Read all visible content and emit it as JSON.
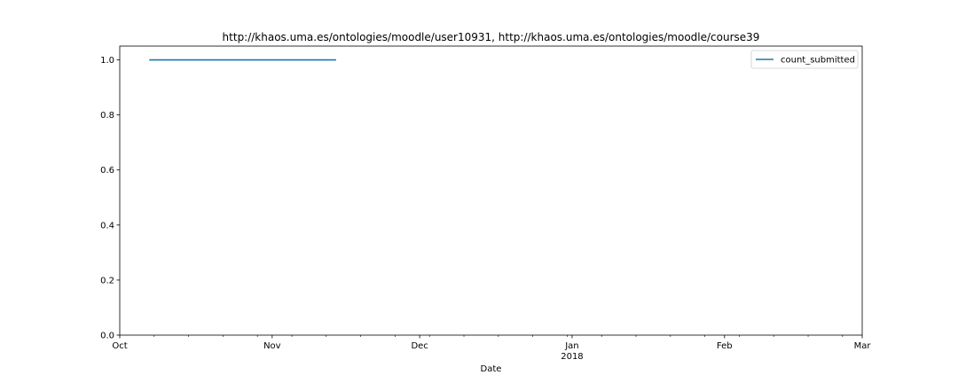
{
  "chart_data": {
    "type": "line",
    "title": "http://khaos.uma.es/ontologies/moodle/user10931, http://khaos.uma.es/ontologies/moodle/course39",
    "xlabel": "Date",
    "ylabel": "",
    "xlim": [
      "2017-10-01",
      "2018-03-01"
    ],
    "ylim": [
      0.0,
      1.05
    ],
    "x_major_ticks": [
      {
        "date": "2017-10-01",
        "label": "Oct",
        "sublabel": ""
      },
      {
        "date": "2017-11-01",
        "label": "Nov",
        "sublabel": ""
      },
      {
        "date": "2017-12-01",
        "label": "Dec",
        "sublabel": ""
      },
      {
        "date": "2018-01-01",
        "label": "Jan",
        "sublabel": "2018"
      },
      {
        "date": "2018-02-01",
        "label": "Feb",
        "sublabel": ""
      },
      {
        "date": "2018-03-01",
        "label": "Mar",
        "sublabel": ""
      }
    ],
    "x_minor_ticks": [
      "2017-10-08",
      "2017-10-15",
      "2017-10-22",
      "2017-10-29",
      "2017-11-05",
      "2017-11-12",
      "2017-11-19",
      "2017-11-26",
      "2017-12-03",
      "2017-12-10",
      "2017-12-17",
      "2017-12-24",
      "2017-12-31",
      "2018-01-07",
      "2018-01-14",
      "2018-01-21",
      "2018-01-28",
      "2018-02-04",
      "2018-02-11",
      "2018-02-18",
      "2018-02-25"
    ],
    "y_ticks": [
      "0.0",
      "0.2",
      "0.4",
      "0.6",
      "0.8",
      "1.0"
    ],
    "grid": false,
    "legend_position": "top-right",
    "series": [
      {
        "name": "count_submitted",
        "color": "#1f77b4",
        "x": [
          "2017-10-07",
          "2017-11-14"
        ],
        "y": [
          1.0,
          1.0
        ]
      }
    ]
  }
}
